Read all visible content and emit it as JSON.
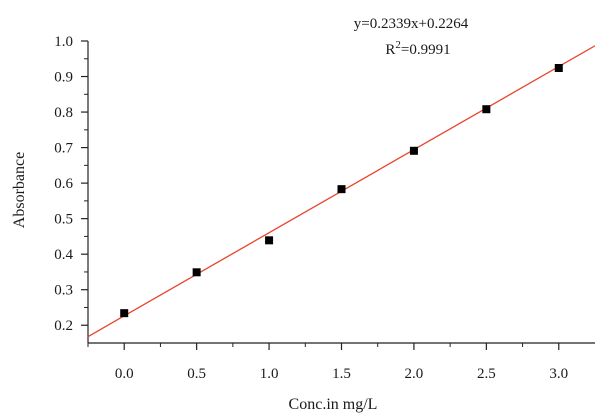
{
  "chart_data": {
    "type": "scatter",
    "xlabel": "Conc.in mg/L",
    "ylabel": "Absorbance",
    "xlim": [
      -0.25,
      3.25
    ],
    "ylim": [
      0.15,
      1.0
    ],
    "x_ticks": [
      "0.0",
      "0.5",
      "1.0",
      "1.5",
      "2.0",
      "2.5",
      "3.0"
    ],
    "y_ticks": [
      "0.2",
      "0.3",
      "0.4",
      "0.5",
      "0.6",
      "0.7",
      "0.8",
      "0.9",
      "1.0"
    ],
    "x": [
      0.0,
      0.5,
      1.0,
      1.5,
      2.0,
      2.5,
      3.0
    ],
    "y": [
      0.234,
      0.349,
      0.439,
      0.583,
      0.691,
      0.808,
      0.924
    ],
    "fit": {
      "slope": 0.2339,
      "intercept": 0.2264
    },
    "equation_label": "y=0.2339x+0.2264",
    "r2_prefix": "R",
    "r2_sup": "2",
    "r2_suffix": "=0.9991",
    "colors": {
      "fit_line": "#e8442a",
      "marker": "#000000",
      "axis": "#222222"
    }
  }
}
